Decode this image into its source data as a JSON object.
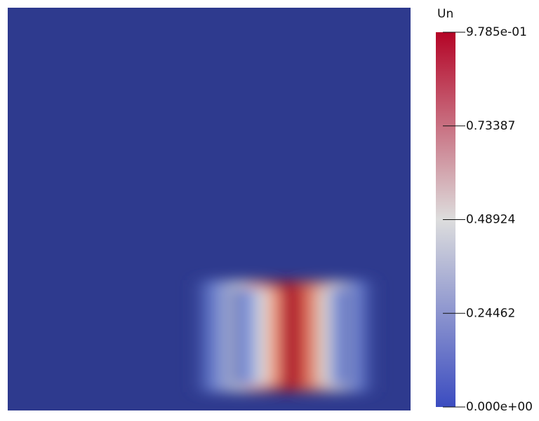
{
  "chart_data": {
    "type": "colormap-field",
    "colorbar_title": "Un",
    "clim": [
      0,
      0.9785
    ],
    "ticks": [
      {
        "value": 0.9785,
        "label": "9.785e-01"
      },
      0.73387,
      0.48924,
      0.24462,
      {
        "value": 0,
        "label": "0.000e+00"
      }
    ],
    "colormap": [
      "#3b4cc0",
      "#dddddd",
      "#b40426"
    ]
  }
}
